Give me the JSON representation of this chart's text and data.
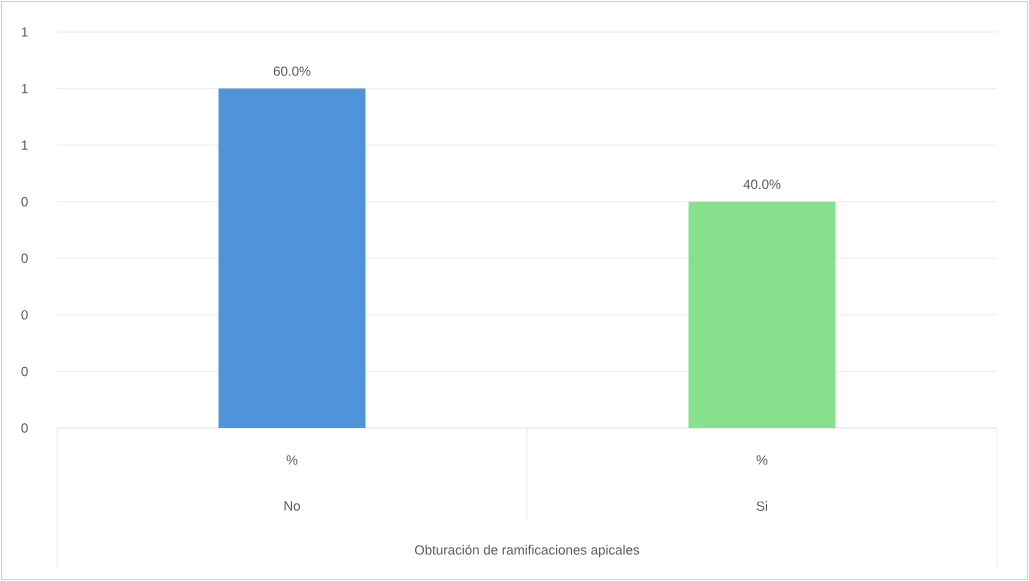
{
  "chart_data": {
    "type": "bar",
    "xlabel": "Obturación de ramificaciones apicales",
    "categories": [
      "No",
      "Si"
    ],
    "values": [
      0.6,
      0.4
    ],
    "colors": [
      "#4f94d9",
      "#86e08e"
    ],
    "value_labels": [
      "60.0%",
      "40.0%"
    ],
    "annotations": [
      "%",
      "%"
    ],
    "ylim": [
      0,
      0.7
    ],
    "yticks": [
      {
        "value": 0,
        "label": "0"
      },
      {
        "value": 0.1,
        "label": "0"
      },
      {
        "value": 0.2,
        "label": "0"
      },
      {
        "value": 0.3,
        "label": "0"
      },
      {
        "value": 0.4,
        "label": "0"
      },
      {
        "value": 0.5,
        "label": "1"
      },
      {
        "value": 0.6,
        "label": "1"
      },
      {
        "value": 0.7,
        "label": "1"
      }
    ],
    "grid": "y"
  }
}
